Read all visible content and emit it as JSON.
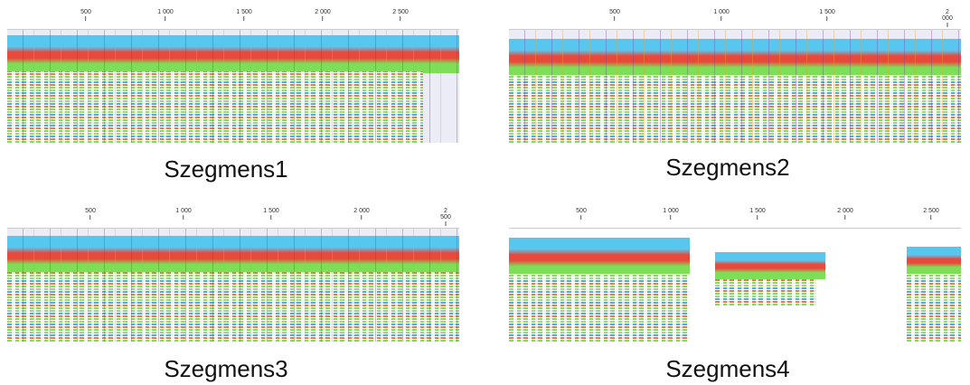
{
  "panels": [
    {
      "caption": "Szegmens1",
      "ticks": [
        "500",
        "1 000",
        "1 500",
        "2 000",
        "2 500"
      ]
    },
    {
      "caption": "Szegmens2",
      "ticks": [
        "500",
        "1 000",
        "1 500",
        "2 000"
      ]
    },
    {
      "caption": "Szegmens3",
      "ticks": [
        "500",
        "1 000",
        "1 500",
        "2 000",
        "2 500"
      ]
    },
    {
      "caption": "Szegmens4",
      "ticks": [
        "500",
        "1 000",
        "1 500",
        "2 000",
        "2 500"
      ]
    }
  ]
}
